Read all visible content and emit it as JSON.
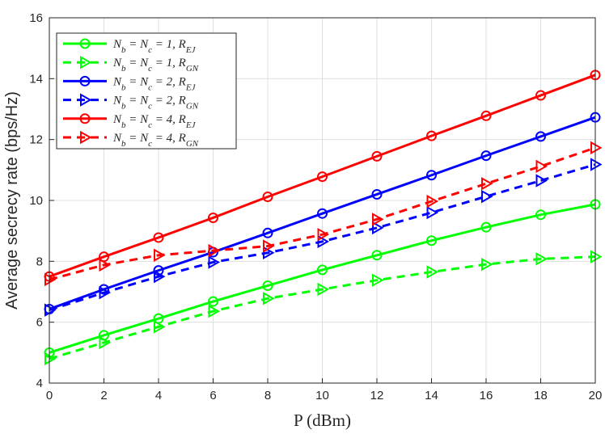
{
  "chart_data": {
    "type": "line",
    "title": "",
    "xlabel": "P (dBm)",
    "ylabel": "Average secrecy rate (bps/Hz)",
    "x": [
      0,
      2,
      4,
      6,
      8,
      10,
      12,
      14,
      16,
      18,
      20
    ],
    "xlim": [
      0,
      20
    ],
    "ylim": [
      4,
      16
    ],
    "xticks": [
      "0",
      "2",
      "4",
      "6",
      "8",
      "10",
      "12",
      "14",
      "16",
      "18",
      "20"
    ],
    "yticks": [
      "4",
      "6",
      "8",
      "10",
      "12",
      "14",
      "16"
    ],
    "grid": true,
    "legend_position": "top-left",
    "series": [
      {
        "name": "N_b = N_c = 1, R_EJ",
        "color": "#00ff00",
        "style": "solid",
        "marker": "circle",
        "values": [
          5.0,
          5.57,
          6.12,
          6.68,
          7.2,
          7.72,
          8.2,
          8.68,
          9.12,
          9.53,
          9.87
        ]
      },
      {
        "name": "N_b = N_c = 1, R_GN",
        "color": "#00ff00",
        "style": "dashed",
        "marker": "triangle-right",
        "values": [
          4.8,
          5.33,
          5.85,
          6.36,
          6.78,
          7.08,
          7.38,
          7.65,
          7.9,
          8.08,
          8.15
        ]
      },
      {
        "name": "N_b = N_c = 2, R_EJ",
        "color": "#0000ff",
        "style": "solid",
        "marker": "circle",
        "values": [
          6.43,
          7.08,
          7.7,
          8.3,
          8.93,
          9.57,
          10.2,
          10.83,
          11.47,
          12.1,
          12.73
        ]
      },
      {
        "name": "N_b = N_c = 2, R_GN",
        "color": "#0000ff",
        "style": "dashed",
        "marker": "triangle-right",
        "values": [
          6.4,
          6.97,
          7.5,
          7.97,
          8.28,
          8.65,
          9.1,
          9.6,
          10.13,
          10.65,
          11.18
        ]
      },
      {
        "name": "N_b = N_c = 4, R_EJ",
        "color": "#ff0000",
        "style": "solid",
        "marker": "circle",
        "values": [
          7.5,
          8.15,
          8.78,
          9.43,
          10.12,
          10.78,
          11.45,
          12.12,
          12.78,
          13.45,
          14.12
        ]
      },
      {
        "name": "N_b = N_c = 4, R_GN",
        "color": "#ff0000",
        "style": "dashed",
        "marker": "triangle-right",
        "values": [
          7.4,
          7.88,
          8.2,
          8.35,
          8.5,
          8.88,
          9.38,
          9.97,
          10.55,
          11.12,
          11.73
        ]
      }
    ],
    "legend": [
      {
        "main": "N",
        "sub1": "b",
        "mid": " = N",
        "sub2": "c",
        "eq": " = 1, R",
        "sub3": "EJ"
      },
      {
        "main": "N",
        "sub1": "b",
        "mid": " = N",
        "sub2": "c",
        "eq": " = 1, R",
        "sub3": "GN"
      },
      {
        "main": "N",
        "sub1": "b",
        "mid": " = N",
        "sub2": "c",
        "eq": " = 2, R",
        "sub3": "EJ"
      },
      {
        "main": "N",
        "sub1": "b",
        "mid": " = N",
        "sub2": "c",
        "eq": " = 2, R",
        "sub3": "GN"
      },
      {
        "main": "N",
        "sub1": "b",
        "mid": " = N",
        "sub2": "c",
        "eq": " = 4, R",
        "sub3": "EJ"
      },
      {
        "main": "N",
        "sub1": "b",
        "mid": " = N",
        "sub2": "c",
        "eq": " = 4, R",
        "sub3": "GN"
      }
    ]
  }
}
